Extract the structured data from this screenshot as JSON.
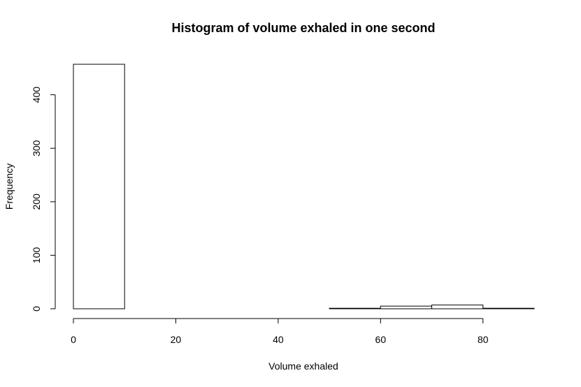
{
  "chart_data": {
    "type": "bar",
    "title": "Histogram of volume exhaled in one second",
    "xlabel": "Volume exhaled",
    "ylabel": "Frequency",
    "bins": [
      {
        "from": 0,
        "to": 10,
        "count": 457
      },
      {
        "from": 10,
        "to": 20,
        "count": 0
      },
      {
        "from": 20,
        "to": 30,
        "count": 0
      },
      {
        "from": 30,
        "to": 40,
        "count": 0
      },
      {
        "from": 40,
        "to": 50,
        "count": 0
      },
      {
        "from": 50,
        "to": 60,
        "count": 1
      },
      {
        "from": 60,
        "to": 70,
        "count": 5
      },
      {
        "from": 70,
        "to": 80,
        "count": 7
      },
      {
        "from": 80,
        "to": 90,
        "count": 1
      }
    ],
    "xlim": [
      0,
      90
    ],
    "ylim": [
      0,
      457
    ],
    "xticks": [
      0,
      20,
      40,
      60,
      80
    ],
    "yticks": [
      0,
      100,
      200,
      300,
      400
    ],
    "grid": false,
    "legend": "none"
  }
}
